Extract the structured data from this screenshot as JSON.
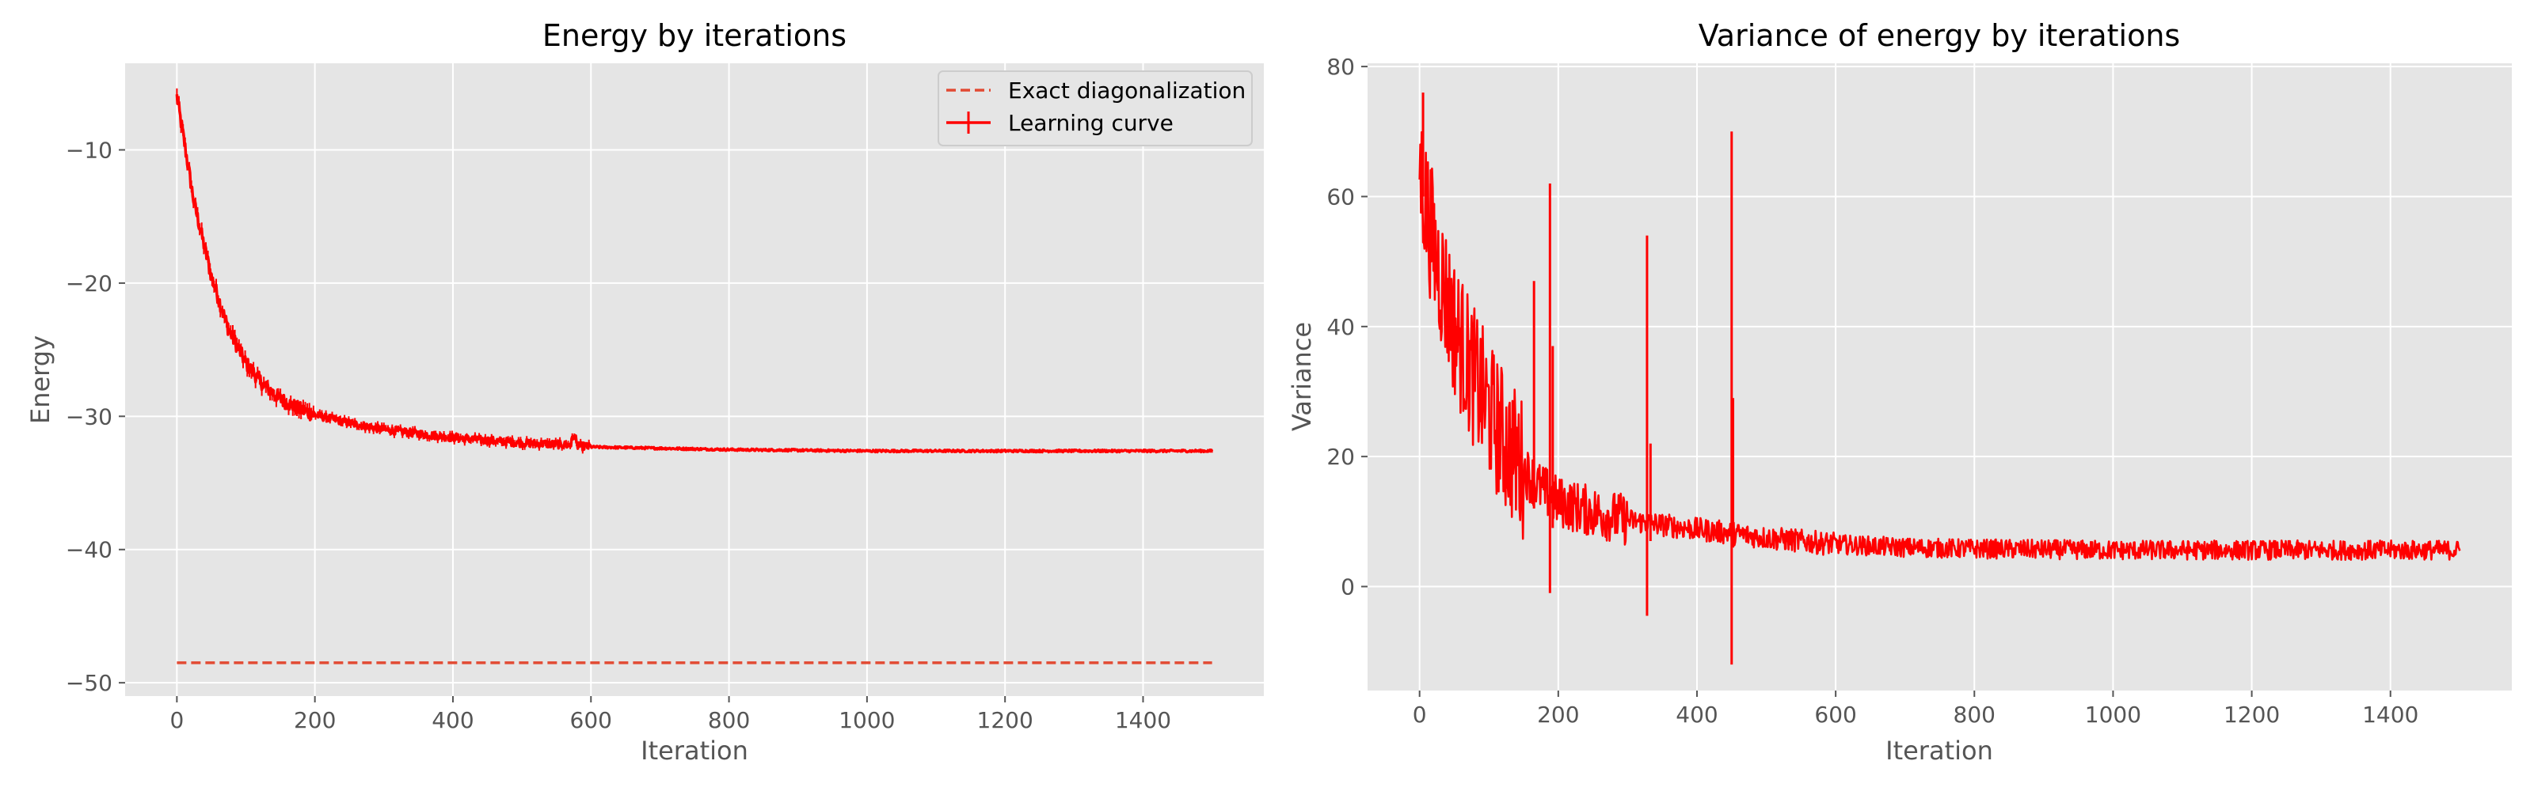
{
  "chart_data": [
    {
      "type": "line",
      "title": "Energy by iterations",
      "xlabel": "Iteration",
      "ylabel": "Energy",
      "xlim": [
        -75,
        1575
      ],
      "ylim": [
        -51,
        -3.5
      ],
      "xticks": [
        0,
        200,
        400,
        600,
        800,
        1000,
        1200,
        1400
      ],
      "yticks": [
        -50,
        -40,
        -30,
        -20,
        -10
      ],
      "ytick_labels": [
        "−50",
        "−40",
        "−30",
        "−20",
        "−10"
      ],
      "grid": true,
      "legend": "top-right",
      "legend_entries": [
        "Exact diagonalization",
        "Learning curve"
      ],
      "series": [
        {
          "name": "Exact diagonalization",
          "style": "dashed",
          "color": "#E24A33",
          "x": [
            0,
            1500
          ],
          "y": [
            -48.5,
            -48.5
          ]
        },
        {
          "name": "Learning curve",
          "style": "solid-errorbar",
          "color": "#FF0000",
          "x": [
            0,
            25,
            50,
            75,
            100,
            125,
            150,
            175,
            200,
            250,
            300,
            350,
            400,
            450,
            500,
            550,
            600,
            700,
            800,
            900,
            1000,
            1100,
            1200,
            1300,
            1400,
            1500
          ],
          "y": [
            -6,
            -14,
            -19.5,
            -23.5,
            -26,
            -27.6,
            -28.7,
            -29.4,
            -29.9,
            -30.5,
            -31.0,
            -31.3,
            -31.6,
            -31.8,
            -32.0,
            -32.1,
            -32.3,
            -32.4,
            -32.5,
            -32.55,
            -32.6,
            -32.6,
            -32.6,
            -32.6,
            -32.6,
            -32.6
          ],
          "spike": {
            "x": 575,
            "y": -31.6
          }
        }
      ]
    },
    {
      "type": "line",
      "title": "Variance of energy by iterations",
      "xlabel": "Iteration",
      "ylabel": "Variance",
      "xlim": [
        -75,
        1575
      ],
      "ylim": [
        -16,
        80.5
      ],
      "xticks": [
        0,
        200,
        400,
        600,
        800,
        1000,
        1200,
        1400
      ],
      "yticks": [
        0,
        20,
        40,
        60,
        80
      ],
      "ytick_labels": [
        "0",
        "20",
        "40",
        "60",
        "80"
      ],
      "grid": true,
      "series": [
        {
          "color": "#FF0000",
          "style": "solid",
          "x": [
            0,
            10,
            25,
            50,
            75,
            100,
            125,
            150,
            175,
            200,
            250,
            300,
            350,
            400,
            450,
            500,
            600,
            700,
            800,
            900,
            1000,
            1200,
            1400,
            1500
          ],
          "y": [
            65,
            58,
            50,
            40,
            33,
            27,
            22,
            18,
            15,
            13,
            11.5,
            10.2,
            9.5,
            8.8,
            8.2,
            7.5,
            6.5,
            6.0,
            5.8,
            5.7,
            5.6,
            5.6,
            5.6,
            5.6
          ],
          "spikes": [
            {
              "x": 5,
              "high": 76,
              "low": 60
            },
            {
              "x": 165,
              "high": 47,
              "low": 12
            },
            {
              "x": 188,
              "high": 62,
              "low": -1
            },
            {
              "x": 192,
              "high": 37,
              "low": 9
            },
            {
              "x": 328,
              "high": 54,
              "low": -4.5
            },
            {
              "x": 333,
              "high": 22,
              "low": 7
            },
            {
              "x": 450,
              "high": 70,
              "low": -12
            },
            {
              "x": 452,
              "high": 29,
              "low": 6
            }
          ]
        }
      ]
    }
  ]
}
